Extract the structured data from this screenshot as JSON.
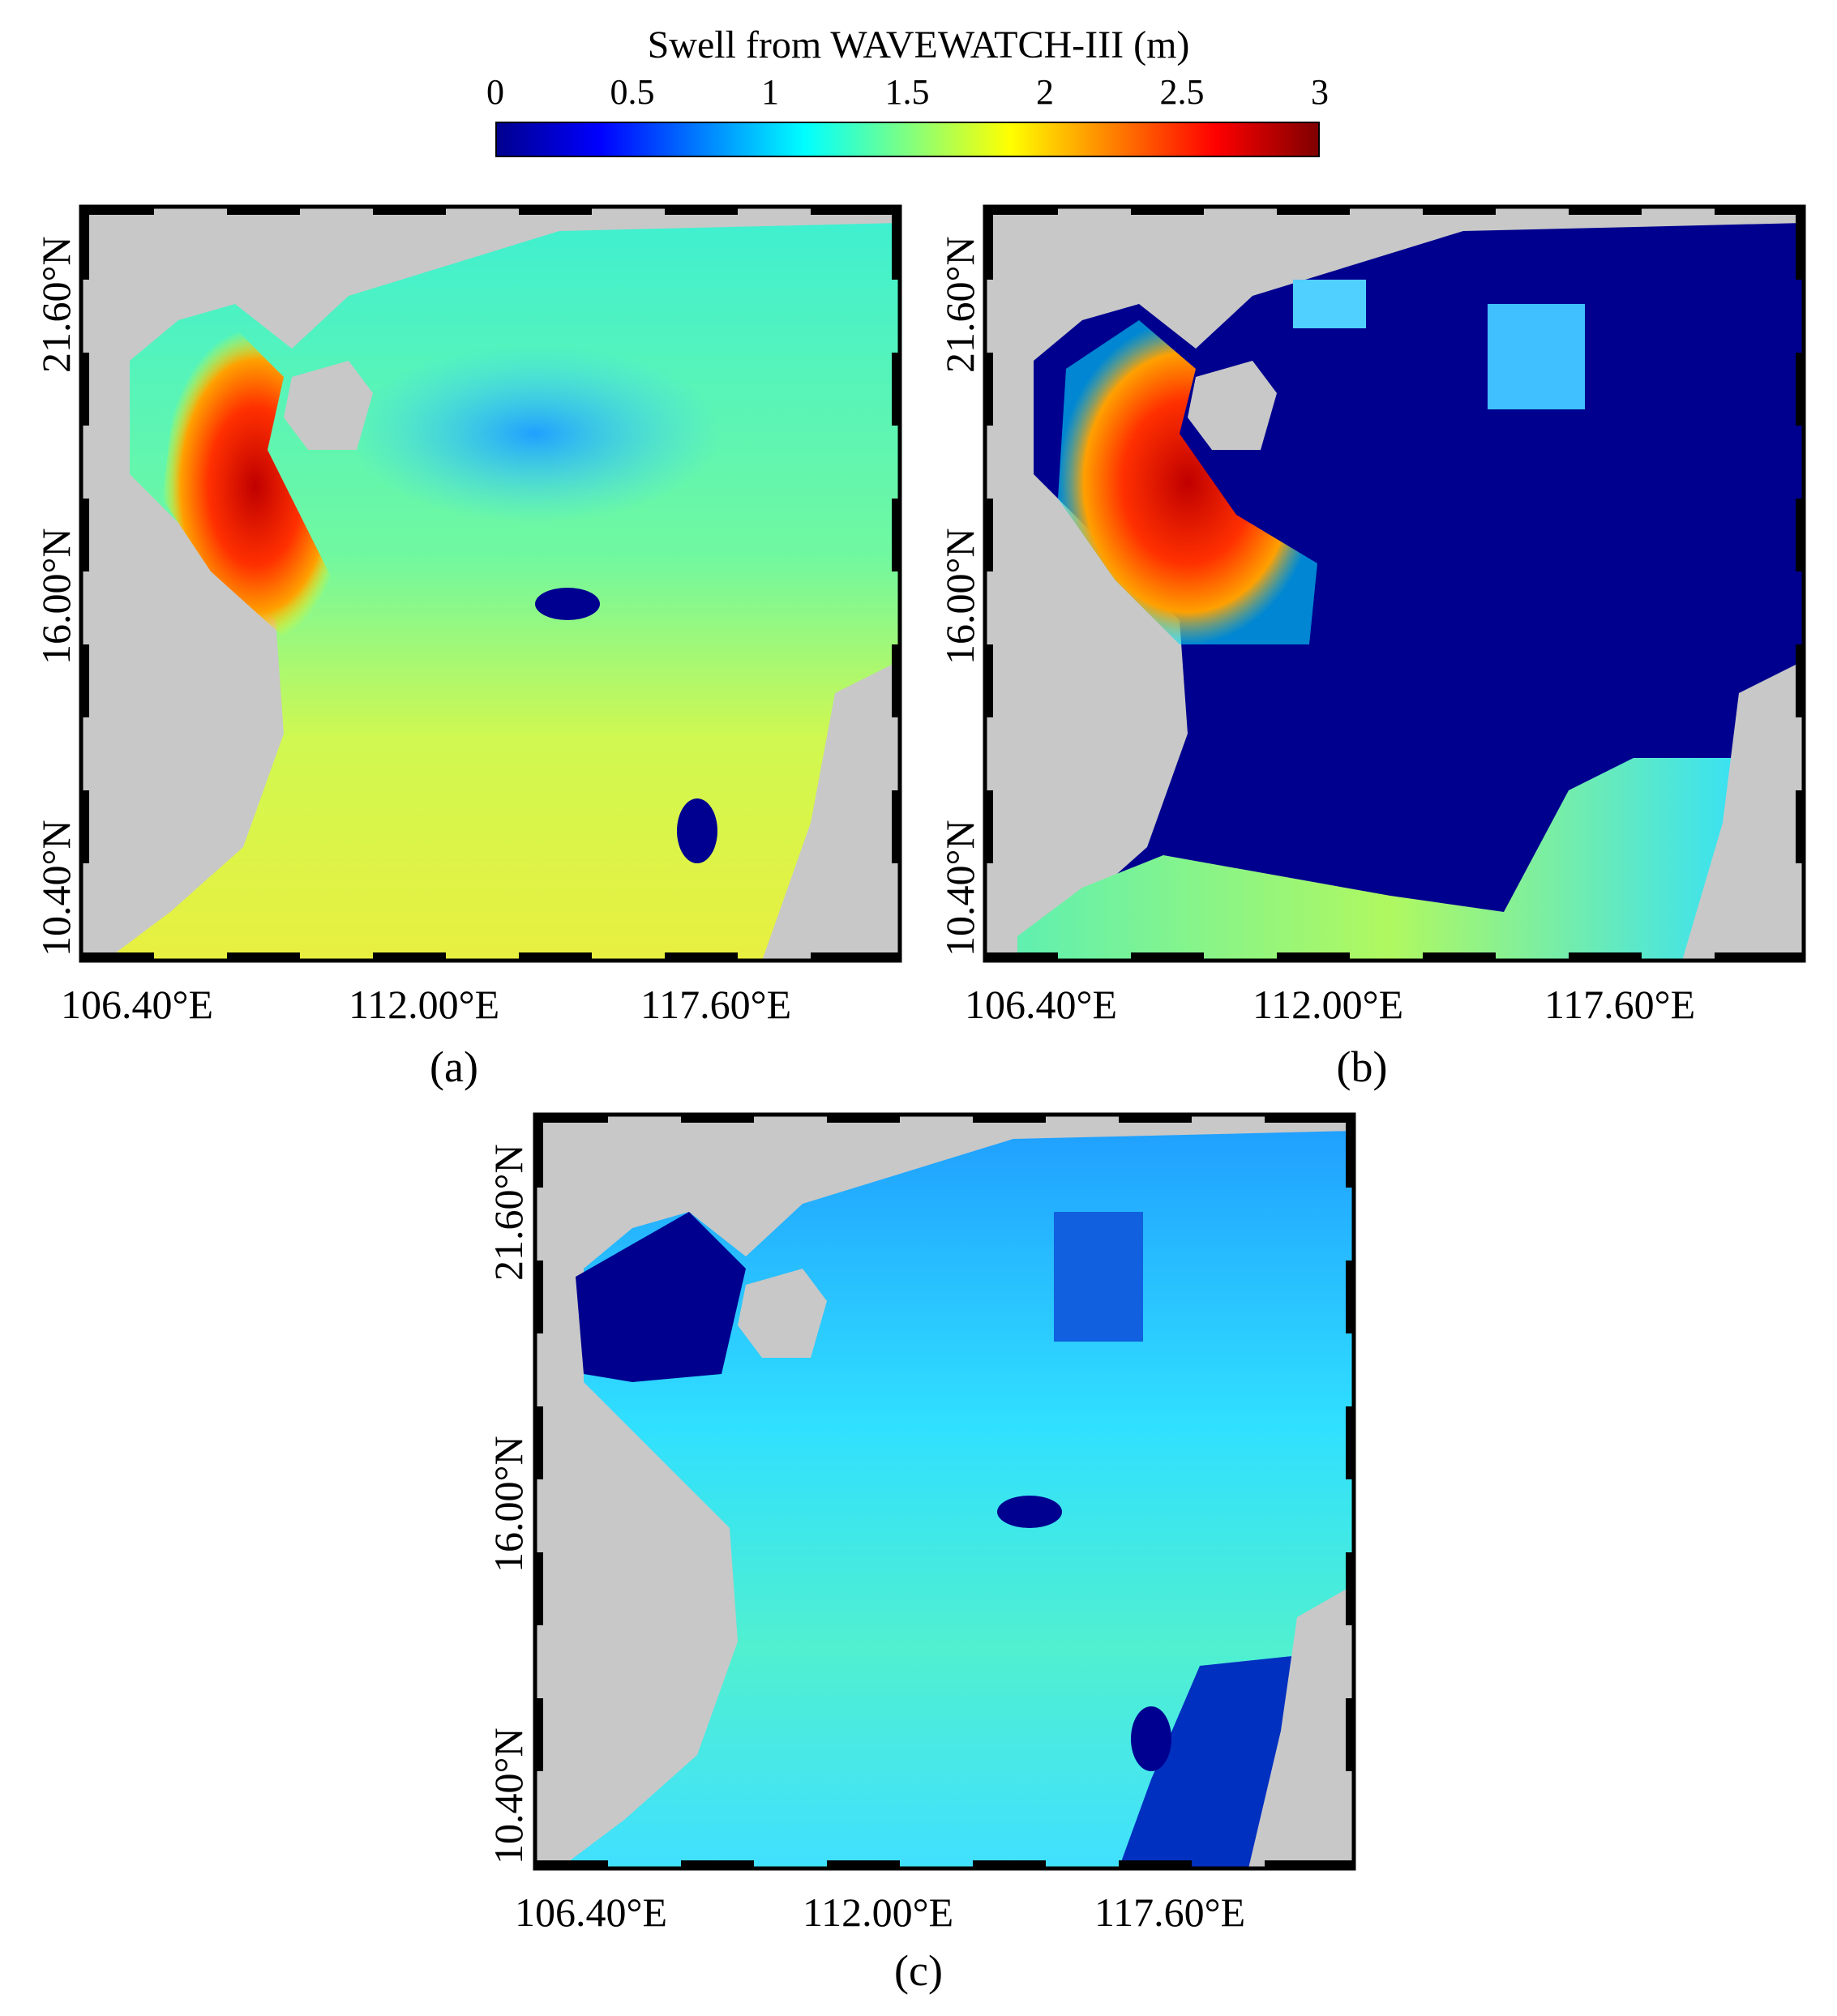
{
  "colorbar": {
    "title": "Swell from WAVEWATCH-III (m)",
    "ticks": [
      "0",
      "0.5",
      "1",
      "1.5",
      "2",
      "2.5",
      "3"
    ],
    "range": [
      0,
      3
    ]
  },
  "axes": {
    "lon_labels": [
      "106.40°E",
      "112.00°E",
      "117.60°E"
    ],
    "lat_labels": [
      "21.60°N",
      "16.00°N",
      "10.40°N"
    ]
  },
  "panels": [
    {
      "id": "a",
      "label": "(a)"
    },
    {
      "id": "b",
      "label": "(b)"
    },
    {
      "id": "c",
      "label": "(c)"
    }
  ],
  "colors": {
    "land": "#c8c8c8",
    "frame": "#000000"
  }
}
